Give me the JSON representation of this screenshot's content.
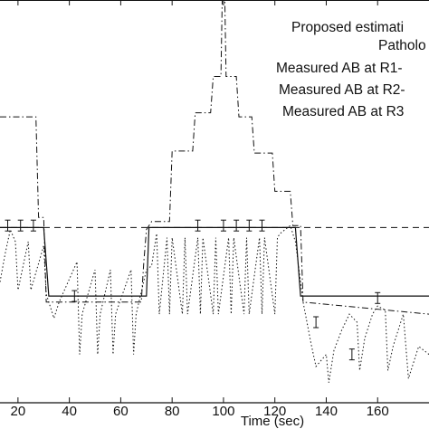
{
  "chart_data": {
    "type": "line",
    "xlabel": "Time (sec)",
    "xlim": [
      13,
      180
    ],
    "ylim": [
      0,
      1
    ],
    "x_ticks": [
      "20",
      "40",
      "60",
      "80",
      "100",
      "120",
      "140",
      "160"
    ],
    "legend": [
      "Proposed estimati",
      "Patholo",
      "Measured AB at R1-",
      "Measured AB at R2-",
      "Measured AB at R3"
    ],
    "legend_placement": "top-right",
    "grid": false,
    "series": [
      {
        "name": "Proposed estimati",
        "style": "solid",
        "x": [
          13,
          30,
          32,
          70,
          71,
          128,
          130,
          180
        ],
        "y": [
          0.435,
          0.435,
          0.265,
          0.265,
          0.435,
          0.435,
          0.265,
          0.265
        ]
      },
      {
        "name": "Patholo",
        "style": "dashed",
        "x": [
          13,
          180
        ],
        "y": [
          0.435,
          0.435
        ]
      },
      {
        "name": "Measured AB at R1-",
        "style": "dashdot",
        "x": [
          13,
          18,
          18,
          27,
          28,
          30,
          31,
          68,
          69,
          70,
          72,
          79,
          80,
          88,
          89,
          95,
          96,
          99,
          99.5,
          100.5,
          101,
          105,
          106,
          111,
          112,
          119,
          120,
          126,
          127,
          130,
          131,
          180
        ],
        "y": [
          0.71,
          0.71,
          0.71,
          0.71,
          0.46,
          0.46,
          0.25,
          0.25,
          0.35,
          0.43,
          0.45,
          0.45,
          0.625,
          0.625,
          0.72,
          0.72,
          0.81,
          0.81,
          1.0,
          1.0,
          0.81,
          0.81,
          0.71,
          0.71,
          0.62,
          0.62,
          0.525,
          0.525,
          0.44,
          0.44,
          0.25,
          0.22
        ]
      },
      {
        "name": "Measured AB at R2-",
        "style": "dotted",
        "x": [
          13,
          15,
          17,
          19,
          20,
          24,
          25,
          30,
          31,
          34,
          36,
          43,
          44,
          45,
          50,
          51,
          52,
          56,
          57,
          58,
          64,
          65,
          66,
          70,
          72,
          74,
          75,
          78,
          79,
          80,
          84,
          85,
          86,
          90,
          91,
          92,
          96,
          97,
          98,
          102,
          103,
          104,
          108,
          109,
          110,
          114,
          115,
          116,
          120,
          121,
          122,
          126,
          128,
          131,
          134,
          136,
          140,
          141,
          143,
          146,
          149,
          152,
          153,
          155,
          158,
          160,
          163,
          164,
          166,
          170,
          172,
          176,
          180
        ],
        "y": [
          0.3,
          0.37,
          0.43,
          0.4,
          0.28,
          0.4,
          0.28,
          0.39,
          0.27,
          0.21,
          0.25,
          0.35,
          0.12,
          0.22,
          0.33,
          0.12,
          0.22,
          0.33,
          0.12,
          0.22,
          0.33,
          0.12,
          0.22,
          0.33,
          0.34,
          0.42,
          0.22,
          0.41,
          0.22,
          0.41,
          0.22,
          0.41,
          0.22,
          0.41,
          0.22,
          0.41,
          0.22,
          0.41,
          0.22,
          0.41,
          0.22,
          0.41,
          0.22,
          0.41,
          0.22,
          0.41,
          0.22,
          0.41,
          0.22,
          0.41,
          0.42,
          0.44,
          0.4,
          0.25,
          0.15,
          0.09,
          0.12,
          0.05,
          0.13,
          0.18,
          0.22,
          0.2,
          0.08,
          0.16,
          0.22,
          0.24,
          0.23,
          0.08,
          0.14,
          0.22,
          0.06,
          0.14,
          0.12
        ]
      }
    ],
    "error_bars": {
      "x": [
        16,
        21,
        26,
        42,
        90,
        100,
        105,
        110,
        115,
        136,
        150,
        160
      ],
      "y": [
        0.44,
        0.44,
        0.44,
        0.265,
        0.44,
        0.44,
        0.44,
        0.44,
        0.44,
        0.2,
        0.12,
        0.26
      ]
    }
  }
}
